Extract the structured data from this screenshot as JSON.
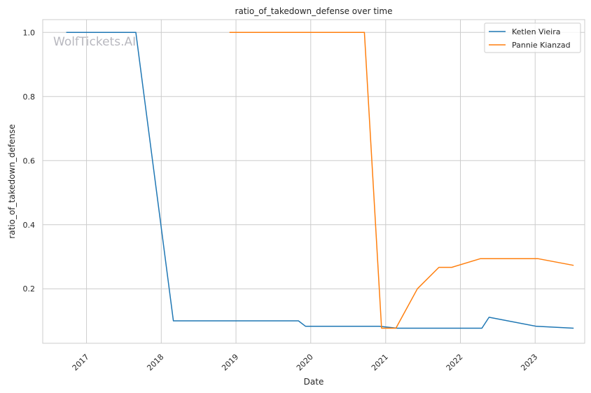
{
  "chart_data": {
    "type": "line",
    "title": "ratio_of_takedown_defense over time",
    "xlabel": "Date",
    "ylabel": "ratio_of_takedown_defense",
    "x_type": "date",
    "xlim": [
      "2016-06-01",
      "2023-08-31"
    ],
    "ylim": [
      0.03,
      1.04
    ],
    "x_ticks": [
      "2017",
      "2018",
      "2019",
      "2020",
      "2021",
      "2022",
      "2023"
    ],
    "y_ticks": [
      "0.2",
      "0.4",
      "0.6",
      "0.8",
      "1.0"
    ],
    "grid": true,
    "legend_position": "top-right",
    "watermark": "WolfTickets.AI",
    "series": [
      {
        "name": "Ketlen Vieira",
        "color": "#1f77b4",
        "points": [
          [
            "2016-09-24",
            1.0
          ],
          [
            "2017-08-30",
            1.0
          ],
          [
            "2018-03-01",
            0.1
          ],
          [
            "2019-11-02",
            0.1
          ],
          [
            "2019-12-07",
            0.083
          ],
          [
            "2020-12-01",
            0.083
          ],
          [
            "2021-02-27",
            0.077
          ],
          [
            "2022-04-16",
            0.077
          ],
          [
            "2022-05-21",
            0.111
          ],
          [
            "2023-01-07",
            0.083
          ],
          [
            "2023-07-08",
            0.077
          ]
        ]
      },
      {
        "name": "Pannie Kianzad",
        "color": "#ff7f0e",
        "points": [
          [
            "2018-11-30",
            1.0
          ],
          [
            "2020-09-19",
            1.0
          ],
          [
            "2020-12-12",
            0.077
          ],
          [
            "2021-02-20",
            0.077
          ],
          [
            "2021-06-05",
            0.2
          ],
          [
            "2021-09-18",
            0.267
          ],
          [
            "2021-11-20",
            0.267
          ],
          [
            "2022-04-09",
            0.294
          ],
          [
            "2023-01-14",
            0.294
          ],
          [
            "2023-07-08",
            0.273
          ]
        ]
      }
    ]
  }
}
